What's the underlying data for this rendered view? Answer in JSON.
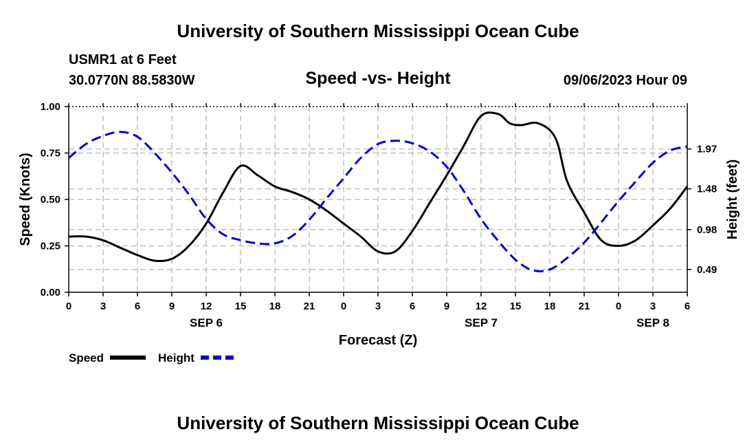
{
  "header": {
    "title": "University of Southern Mississippi Ocean Cube",
    "station": "USMR1 at 6 Feet",
    "coordinates": "30.0770N  88.5830W",
    "chart_title": "Speed -vs- Height",
    "timestamp": "09/06/2023 Hour 09"
  },
  "footer": {
    "title": "University of Southern Mississippi Ocean Cube"
  },
  "legend": {
    "items": [
      {
        "label": "Speed",
        "color": "#000000",
        "dash": "solid"
      },
      {
        "label": "Height",
        "color": "#0000cc",
        "dash": "dashed"
      }
    ]
  },
  "colors": {
    "speed": "#000000",
    "height": "#0000cc",
    "grid": "#c0c0c0"
  },
  "chart_data": {
    "type": "line",
    "title": "Speed -vs- Height",
    "xlabel": "Forecast (Z)",
    "ylabel": "Speed (Knots)",
    "y2label": "Height (feet)",
    "xlim": [
      0,
      54
    ],
    "xticks": [
      0,
      3,
      6,
      9,
      12,
      15,
      18,
      21,
      24,
      27,
      30,
      33,
      36,
      39,
      42,
      45,
      48,
      51,
      54
    ],
    "xtick_labels": [
      "0",
      "3",
      "6",
      "9",
      "12",
      "15",
      "18",
      "21",
      "0",
      "3",
      "6",
      "9",
      "12",
      "15",
      "18",
      "21",
      "0",
      "3",
      "6"
    ],
    "date_labels": [
      {
        "label": "SEP 6",
        "x": 12
      },
      {
        "label": "SEP 7",
        "x": 36
      },
      {
        "label": "SEP 8",
        "x": 51
      }
    ],
    "ylim": [
      0,
      1
    ],
    "yticks": [
      0,
      0.25,
      0.5,
      0.75,
      1.0
    ],
    "ytick_labels": [
      "0.00",
      "0.25",
      "0.50",
      "0.75",
      "1.00"
    ],
    "y2lim": [
      0.21,
      2.49
    ],
    "y2ticks": [
      0.49,
      0.98,
      1.48,
      1.97
    ],
    "y2tick_labels": [
      "0.49",
      "0.98",
      "1.48",
      "1.97"
    ],
    "grid": true,
    "series": [
      {
        "name": "Speed",
        "axis": "left",
        "x": [
          0,
          1.5,
          3,
          4.5,
          6,
          7.5,
          9,
          10.5,
          12,
          13.5,
          15,
          16.5,
          18,
          19.5,
          21,
          22.5,
          24,
          25.5,
          27,
          28.5,
          30,
          31.5,
          33,
          34.5,
          36,
          37.5,
          38.5,
          39.5,
          41,
          42.5,
          43.5,
          45,
          46.5,
          48,
          49.5,
          51,
          52.5,
          54
        ],
        "values": [
          0.3,
          0.3,
          0.28,
          0.24,
          0.2,
          0.17,
          0.18,
          0.25,
          0.37,
          0.54,
          0.68,
          0.63,
          0.57,
          0.54,
          0.5,
          0.44,
          0.37,
          0.3,
          0.22,
          0.22,
          0.33,
          0.48,
          0.63,
          0.79,
          0.95,
          0.96,
          0.91,
          0.9,
          0.91,
          0.83,
          0.6,
          0.43,
          0.28,
          0.25,
          0.28,
          0.36,
          0.45,
          0.57
        ]
      },
      {
        "name": "Height",
        "axis": "right",
        "x": [
          0,
          1.5,
          3,
          4.5,
          6,
          7.5,
          9,
          10.5,
          12,
          13.5,
          15,
          16.5,
          18,
          19.5,
          21,
          22.5,
          24,
          25.5,
          27,
          28.5,
          30,
          31.5,
          33,
          34.5,
          36,
          37.5,
          39,
          40.5,
          42,
          43.5,
          45,
          46.5,
          48,
          49.5,
          51,
          52.5,
          54
        ],
        "values": [
          1.86,
          2.03,
          2.13,
          2.18,
          2.12,
          1.92,
          1.68,
          1.41,
          1.11,
          0.92,
          0.85,
          0.81,
          0.81,
          0.9,
          1.1,
          1.36,
          1.61,
          1.86,
          2.03,
          2.07,
          2.04,
          1.94,
          1.75,
          1.45,
          1.11,
          0.84,
          0.61,
          0.48,
          0.49,
          0.63,
          0.82,
          1.07,
          1.33,
          1.57,
          1.8,
          1.95,
          2.0
        ]
      }
    ]
  }
}
